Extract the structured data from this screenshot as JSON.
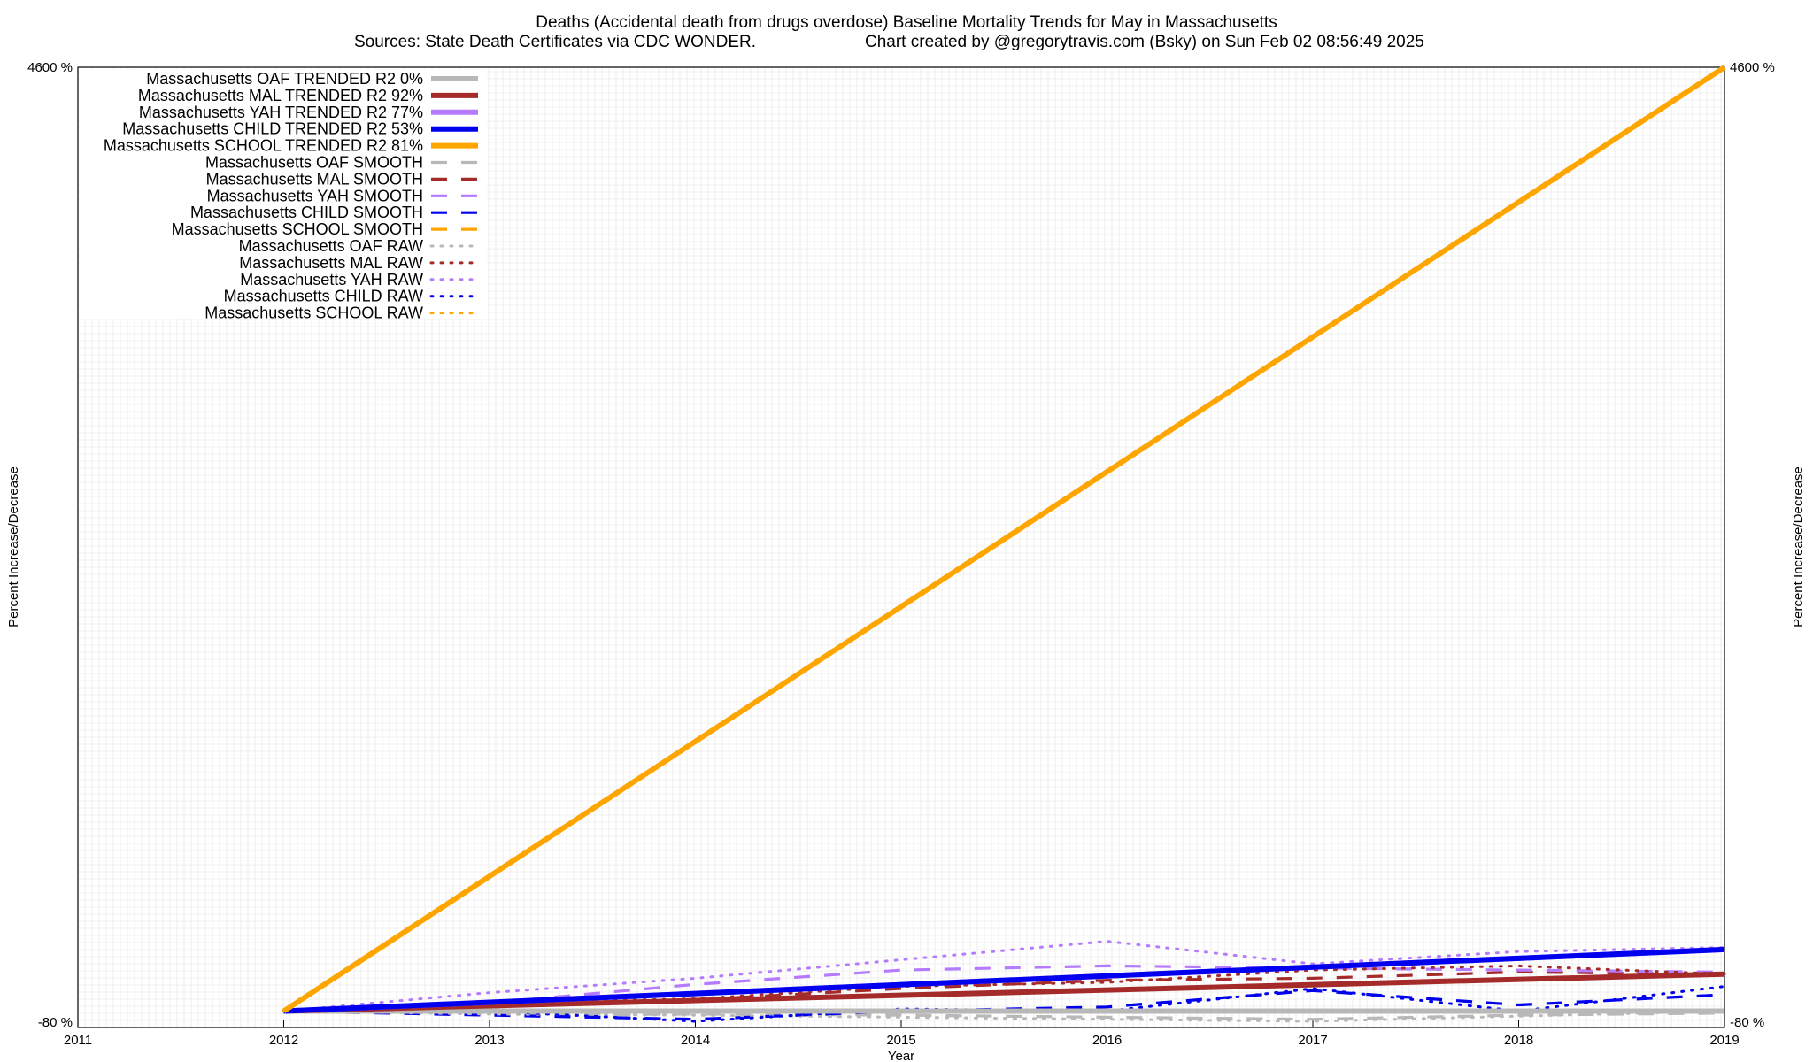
{
  "chart_data": {
    "type": "line",
    "title": "Deaths (Accidental death from drugs overdose)  Baseline Mortality Trends for May in Massachusetts",
    "subtitle_left": "Sources: State Death Certificates via CDC WONDER.",
    "subtitle_right": "Chart created by @gregorytravis.com (Bsky) on Sun Feb 02 08:56:49 2025",
    "xlabel": "Year",
    "ylabel_left": "Percent Increase/Decrease",
    "ylabel_right": "Percent Increase/Decrease",
    "xlim": [
      2011,
      2019
    ],
    "ylim": [
      -80,
      4600
    ],
    "x_ticks": [
      "2011",
      "2012",
      "2013",
      "2014",
      "2015",
      "2016",
      "2017",
      "2018",
      "2019"
    ],
    "y_top_tick": "4600 %",
    "y_bottom_tick": "-80 %",
    "grid": true,
    "legend_position": "top-left",
    "colors": {
      "OAF": "#b8b8b8",
      "MAL": "#a52a2a",
      "YAH": "#b57bff",
      "CHILD": "#0000ee",
      "SCHOOL": "#ffa500"
    },
    "series": [
      {
        "name": "Massachusetts OAF TRENDED R2  0%",
        "group": "OAF",
        "style": "trend",
        "x": [
          2012,
          2019
        ],
        "y": [
          0,
          0
        ]
      },
      {
        "name": "Massachusetts MAL TRENDED R2  92%",
        "group": "MAL",
        "style": "trend",
        "x": [
          2012,
          2019
        ],
        "y": [
          0,
          180
        ]
      },
      {
        "name": "Massachusetts YAH TRENDED R2  77%",
        "group": "YAH",
        "style": "trend",
        "x": [
          2012,
          2019
        ],
        "y": [
          0,
          300
        ]
      },
      {
        "name": "Massachusetts CHILD TRENDED R2  53%",
        "group": "CHILD",
        "style": "trend",
        "x": [
          2012,
          2019
        ],
        "y": [
          0,
          300
        ]
      },
      {
        "name": "Massachusetts SCHOOL TRENDED R2  81%",
        "group": "SCHOOL",
        "style": "trend",
        "x": [
          2012,
          2019
        ],
        "y": [
          0,
          4600
        ]
      },
      {
        "name": "Massachusetts OAF SMOOTH",
        "group": "OAF",
        "style": "smooth",
        "x": [
          2012,
          2013,
          2014,
          2015,
          2016,
          2017,
          2018,
          2019
        ],
        "y": [
          0,
          -20,
          -15,
          -20,
          -30,
          -40,
          -20,
          -10
        ]
      },
      {
        "name": "Massachusetts MAL SMOOTH",
        "group": "MAL",
        "style": "smooth",
        "x": [
          2012,
          2013,
          2014,
          2015,
          2016,
          2017,
          2018,
          2019
        ],
        "y": [
          0,
          20,
          55,
          110,
          150,
          160,
          190,
          180
        ]
      },
      {
        "name": "Massachusetts YAH SMOOTH",
        "group": "YAH",
        "style": "smooth",
        "x": [
          2012,
          2013,
          2014,
          2015,
          2016,
          2017,
          2018,
          2019
        ],
        "y": [
          0,
          40,
          130,
          200,
          220,
          210,
          200,
          190
        ]
      },
      {
        "name": "Massachusetts CHILD SMOOTH",
        "group": "CHILD",
        "style": "smooth",
        "x": [
          2012,
          2013,
          2014,
          2015,
          2016,
          2017,
          2018,
          2019
        ],
        "y": [
          0,
          -20,
          -40,
          0,
          20,
          100,
          30,
          80
        ]
      },
      {
        "name": "Massachusetts SCHOOL SMOOTH",
        "group": "SCHOOL",
        "style": "smooth",
        "x": [
          2012,
          2019
        ],
        "y": [
          0,
          4600
        ]
      },
      {
        "name": "Massachusetts OAF RAW",
        "group": "OAF",
        "style": "raw",
        "x": [
          2012,
          2013,
          2014,
          2015,
          2016,
          2017,
          2018,
          2019
        ],
        "y": [
          0,
          -15,
          -20,
          -30,
          -40,
          -50,
          -25,
          0
        ]
      },
      {
        "name": "Massachusetts MAL RAW",
        "group": "MAL",
        "style": "raw",
        "x": [
          2012,
          2013,
          2014,
          2015,
          2016,
          2017,
          2018,
          2019
        ],
        "y": [
          0,
          40,
          60,
          120,
          140,
          200,
          220,
          180
        ]
      },
      {
        "name": "Massachusetts YAH RAW",
        "group": "YAH",
        "style": "raw",
        "x": [
          2012,
          2013,
          2014,
          2015,
          2016,
          2017,
          2018,
          2019
        ],
        "y": [
          0,
          90,
          160,
          250,
          340,
          230,
          290,
          310
        ]
      },
      {
        "name": "Massachusetts CHILD RAW",
        "group": "CHILD",
        "style": "raw",
        "x": [
          2012,
          2013,
          2014,
          2015,
          2016,
          2017,
          2018,
          2019
        ],
        "y": [
          0,
          0,
          -50,
          10,
          0,
          110,
          0,
          120
        ]
      },
      {
        "name": "Massachusetts SCHOOL RAW",
        "group": "SCHOOL",
        "style": "raw",
        "x": [
          2012,
          2019
        ],
        "y": [
          0,
          4600
        ]
      }
    ]
  }
}
